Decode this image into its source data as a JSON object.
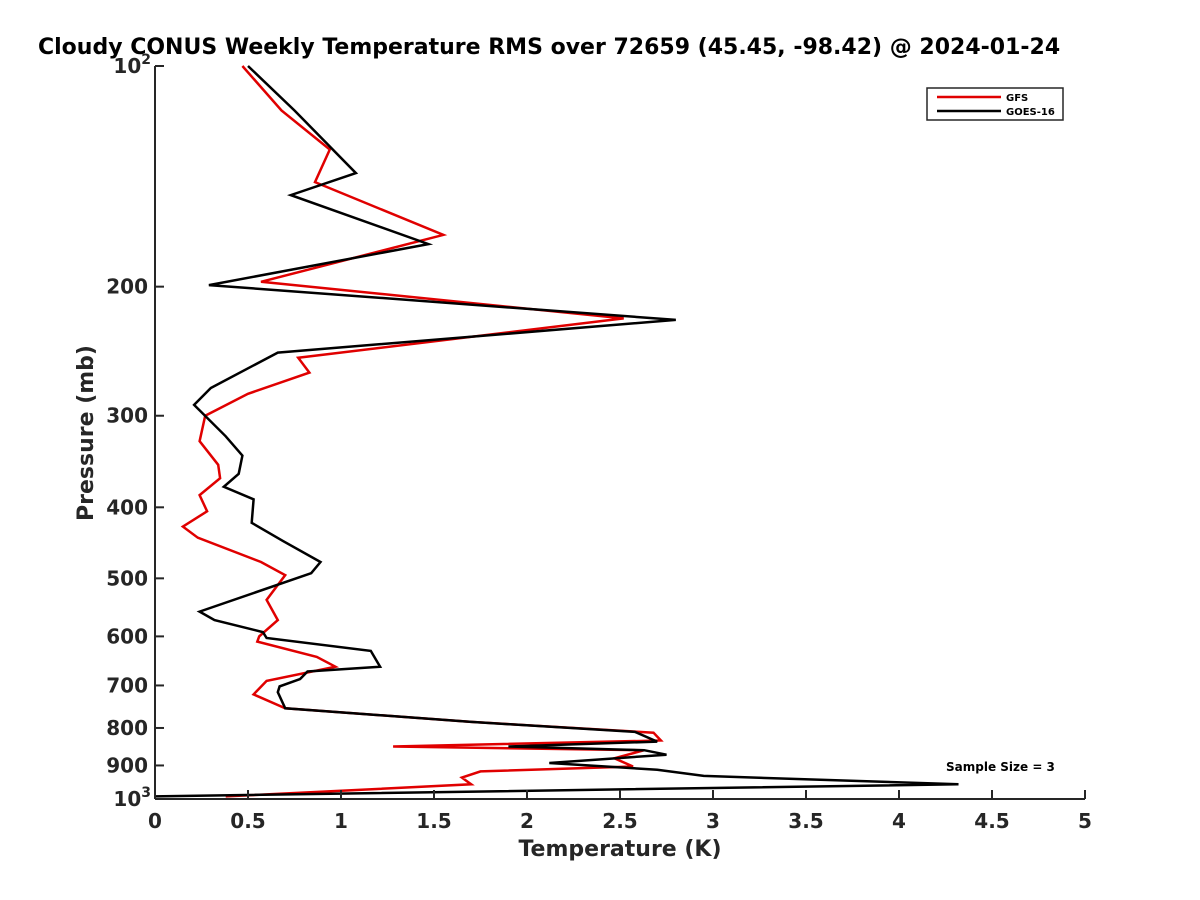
{
  "chart_data": {
    "type": "line",
    "title": "Cloudy CONUS Weekly Temperature RMS over 72659 (45.45, -98.42) @ 2024-01-24",
    "xlabel": "Temperature (K)",
    "ylabel": "Pressure (mb)",
    "xlim": [
      0,
      5
    ],
    "ylim": [
      100,
      1000
    ],
    "y_scale": "log",
    "y_reversed": true,
    "grid": false,
    "legend_position": "top-right",
    "annotation": "Sample Size = 3",
    "x_ticks": [
      {
        "value": 0,
        "label": "0"
      },
      {
        "value": 0.5,
        "label": "0.5"
      },
      {
        "value": 1,
        "label": "1"
      },
      {
        "value": 1.5,
        "label": "1.5"
      },
      {
        "value": 2,
        "label": "2"
      },
      {
        "value": 2.5,
        "label": "2.5"
      },
      {
        "value": 3,
        "label": "3"
      },
      {
        "value": 3.5,
        "label": "3.5"
      },
      {
        "value": 4,
        "label": "4"
      },
      {
        "value": 4.5,
        "label": "4.5"
      },
      {
        "value": 5,
        "label": "5"
      }
    ],
    "y_ticks": [
      {
        "value": 100,
        "base": "10",
        "exp": "2"
      },
      {
        "value": 200,
        "label": "200"
      },
      {
        "value": 300,
        "label": "300"
      },
      {
        "value": 400,
        "label": "400"
      },
      {
        "value": 500,
        "label": "500"
      },
      {
        "value": 600,
        "label": "600"
      },
      {
        "value": 700,
        "label": "700"
      },
      {
        "value": 800,
        "label": "800"
      },
      {
        "value": 900,
        "label": "900"
      },
      {
        "value": 1000,
        "base": "10",
        "exp": "3"
      }
    ],
    "series": [
      {
        "name": "GFS",
        "color": "#e00000",
        "points": [
          [
            0.47,
            100
          ],
          [
            0.68,
            115
          ],
          [
            0.94,
            130
          ],
          [
            0.86,
            144
          ],
          [
            1.55,
            170
          ],
          [
            0.57,
            197
          ],
          [
            2.52,
            221
          ],
          [
            0.77,
            250
          ],
          [
            0.83,
            262
          ],
          [
            0.5,
            280
          ],
          [
            0.27,
            300
          ],
          [
            0.24,
            325
          ],
          [
            0.34,
            350
          ],
          [
            0.35,
            365
          ],
          [
            0.24,
            385
          ],
          [
            0.28,
            405
          ],
          [
            0.15,
            425
          ],
          [
            0.23,
            440
          ],
          [
            0.57,
            475
          ],
          [
            0.7,
            495
          ],
          [
            0.6,
            535
          ],
          [
            0.66,
            570
          ],
          [
            0.56,
            600
          ],
          [
            0.55,
            610
          ],
          [
            0.87,
            640
          ],
          [
            0.97,
            660
          ],
          [
            0.6,
            690
          ],
          [
            0.53,
            720
          ],
          [
            0.7,
            752
          ],
          [
            1.7,
            785
          ],
          [
            2.68,
            812
          ],
          [
            2.72,
            832
          ],
          [
            1.28,
            848
          ],
          [
            2.63,
            858
          ],
          [
            2.47,
            880
          ],
          [
            2.57,
            903
          ],
          [
            1.75,
            917
          ],
          [
            1.65,
            935
          ],
          [
            1.7,
            955
          ],
          [
            0.38,
            992
          ]
        ]
      },
      {
        "name": "GOES-16",
        "color": "#000000",
        "points": [
          [
            0.5,
            100
          ],
          [
            0.75,
            115
          ],
          [
            1.08,
            140
          ],
          [
            0.73,
            150
          ],
          [
            1.47,
            175
          ],
          [
            0.29,
            199
          ],
          [
            2.8,
            222
          ],
          [
            0.66,
            246
          ],
          [
            0.3,
            275
          ],
          [
            0.21,
            290
          ],
          [
            0.38,
            320
          ],
          [
            0.47,
            340
          ],
          [
            0.45,
            360
          ],
          [
            0.37,
            375
          ],
          [
            0.53,
            390
          ],
          [
            0.52,
            420
          ],
          [
            0.69,
            445
          ],
          [
            0.89,
            475
          ],
          [
            0.84,
            492
          ],
          [
            0.24,
            555
          ],
          [
            0.32,
            570
          ],
          [
            0.58,
            592
          ],
          [
            0.6,
            603
          ],
          [
            1.16,
            628
          ],
          [
            1.21,
            660
          ],
          [
            0.82,
            670
          ],
          [
            0.78,
            686
          ],
          [
            0.67,
            702
          ],
          [
            0.66,
            715
          ],
          [
            0.7,
            752
          ],
          [
            1.7,
            785
          ],
          [
            2.58,
            810
          ],
          [
            2.7,
            835
          ],
          [
            1.9,
            848
          ],
          [
            2.63,
            858
          ],
          [
            2.75,
            870
          ],
          [
            2.12,
            893
          ],
          [
            2.7,
            912
          ],
          [
            2.95,
            930
          ],
          [
            4.32,
            955
          ],
          [
            0.0,
            992
          ]
        ]
      }
    ]
  }
}
